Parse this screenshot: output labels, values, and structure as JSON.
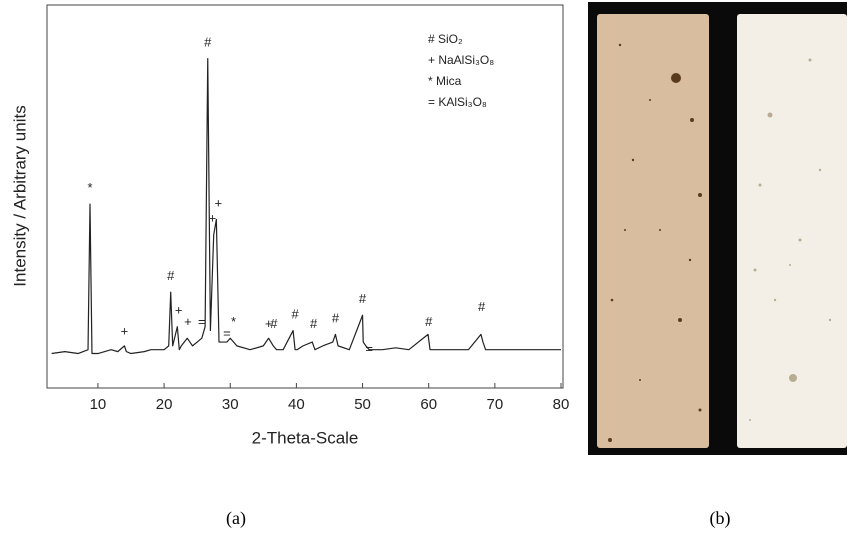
{
  "chart_data": {
    "type": "line",
    "xlabel": "2-Theta-Scale",
    "ylabel": "Intensity / Arbitrary units",
    "xlim": [
      2.3,
      80.3
    ],
    "ylim": [
      0,
      100
    ],
    "xticks": [
      10,
      20,
      30,
      40,
      50,
      60,
      70,
      80
    ],
    "color": "#222222",
    "x": [
      3,
      5,
      7,
      8.5,
      8.8,
      9.1,
      10,
      12,
      13,
      14,
      14.3,
      15,
      17,
      18,
      20,
      20.7,
      21,
      21.3,
      22,
      22.3,
      22.6,
      23.5,
      23.9,
      24.3,
      25,
      25.7,
      26.2,
      26.6,
      27.0,
      27.5,
      27.9,
      28.3,
      29,
      29.5,
      30,
      30.5,
      31,
      33,
      35,
      35.8,
      36.5,
      37,
      38,
      39.5,
      39.8,
      40.1,
      41,
      42.4,
      42.8,
      44,
      45.5,
      45.9,
      46.3,
      48,
      50,
      50.1,
      50.5,
      51,
      53,
      55,
      57,
      59.9,
      60.2,
      60.6,
      62,
      64,
      66,
      67.9,
      68.2,
      68.6,
      70,
      72,
      75,
      78,
      80
    ],
    "values": [
      9,
      9.5,
      9,
      10,
      48,
      9,
      9,
      10,
      9.5,
      11,
      9.5,
      9,
      9.5,
      10,
      10,
      11,
      25,
      11,
      16,
      10,
      11,
      13,
      12,
      11,
      12,
      13,
      16,
      86,
      15,
      40,
      44,
      12,
      12,
      12,
      13,
      12,
      11,
      10,
      11,
      13,
      11,
      10,
      10,
      15,
      10,
      10,
      11,
      12,
      10,
      11,
      12,
      14,
      11,
      10,
      19,
      12,
      11,
      10,
      10,
      10.5,
      10,
      14,
      10,
      10,
      10,
      10,
      10,
      14,
      12,
      10,
      10,
      10,
      10,
      10,
      10
    ],
    "annotations": [
      {
        "text": "*",
        "x": 8.8,
        "y": 51
      },
      {
        "text": "+",
        "x": 14,
        "y": 13.5
      },
      {
        "text": "#",
        "x": 21,
        "y": 28
      },
      {
        "text": "+",
        "x": 22.2,
        "y": 19
      },
      {
        "text": "+",
        "x": 23.6,
        "y": 16
      },
      {
        "text": "=",
        "x": 25.7,
        "y": 16
      },
      {
        "text": "#",
        "x": 26.6,
        "y": 89
      },
      {
        "text": "+",
        "x": 27.3,
        "y": 43
      },
      {
        "text": "+",
        "x": 28.2,
        "y": 47
      },
      {
        "text": "=",
        "x": 29.5,
        "y": 13
      },
      {
        "text": "*",
        "x": 30.5,
        "y": 16
      },
      {
        "text": "+",
        "x": 35.8,
        "y": 15.5
      },
      {
        "text": "#",
        "x": 36.6,
        "y": 15.5
      },
      {
        "text": "#",
        "x": 39.8,
        "y": 18
      },
      {
        "text": "#",
        "x": 42.6,
        "y": 15.5
      },
      {
        "text": "#",
        "x": 45.9,
        "y": 17
      },
      {
        "text": "#",
        "x": 50,
        "y": 22
      },
      {
        "text": "=",
        "x": 51,
        "y": 9
      },
      {
        "text": "#",
        "x": 60,
        "y": 16
      },
      {
        "text": "#",
        "x": 68,
        "y": 20
      }
    ],
    "legend": [
      "# SiO₂",
      "+ NaAlSi₃O₈",
      "* Mica",
      "= KAlSi₃O₈"
    ]
  },
  "captions": [
    "(a)",
    "(b)"
  ]
}
